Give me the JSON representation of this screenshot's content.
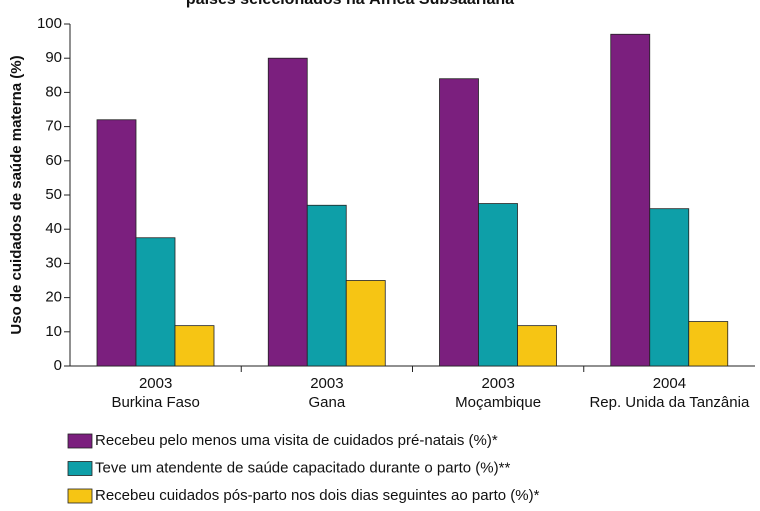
{
  "chart_data": {
    "type": "bar",
    "title": "países selecionados na África Subsaariana",
    "y_label": "Uso de cuidados de saúde materna (%)",
    "categories": [
      [
        "2003",
        "Burkina Faso"
      ],
      [
        "2003",
        "Gana"
      ],
      [
        "2003",
        "Moçambique"
      ],
      [
        "2004",
        "Rep. Unida da Tanzânia"
      ]
    ],
    "series": [
      {
        "name": "Recebeu pelo menos uma visita de cuidados pré-natais (%)*",
        "color": "#7b1f7e",
        "values": [
          72,
          90,
          84,
          97
        ]
      },
      {
        "name": "Teve um atendente de saúde capacitado durante o parto (%)**",
        "color": "#0e9fa8",
        "values": [
          37.5,
          47,
          47.5,
          46
        ]
      },
      {
        "name": "Recebeu cuidados pós-parto nos dois dias seguintes ao parto (%)*",
        "color": "#f6c514",
        "values": [
          11.8,
          25,
          11.8,
          13
        ]
      }
    ],
    "ylim": [
      0,
      100
    ],
    "yticks": [
      0,
      10,
      20,
      30,
      40,
      50,
      60,
      70,
      80,
      90,
      100
    ]
  }
}
